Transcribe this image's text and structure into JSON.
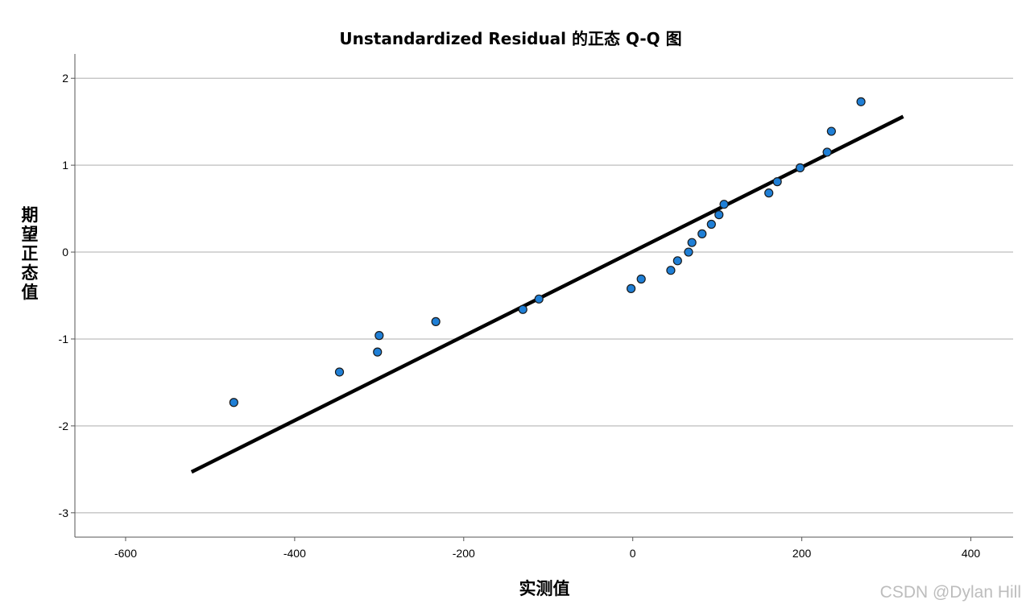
{
  "chart_data": {
    "type": "scatter",
    "title": "Unstandardized Residual 的正态 Q-Q 图",
    "xlabel": "实测值",
    "ylabel": "期望正态值",
    "xlim": [
      -660,
      450
    ],
    "ylim": [
      -3.28,
      2.28
    ],
    "xticks": [
      "-600",
      "-400",
      "-200",
      "0",
      "200",
      "400"
    ],
    "yticks": [
      "2",
      "1",
      "0",
      "-1",
      "-2",
      "-3"
    ],
    "xtick_values": [
      -600,
      -400,
      -200,
      0,
      200,
      400
    ],
    "ytick_values": [
      2,
      1,
      0,
      -1,
      -2,
      -3
    ],
    "grid": "horizontal",
    "point_color": "#1f7fd6",
    "line_color": "#000000",
    "points": [
      [
        -472,
        -1.73
      ],
      [
        -347,
        -1.38
      ],
      [
        -302,
        -1.15
      ],
      [
        -300,
        -0.96
      ],
      [
        -233,
        -0.8
      ],
      [
        -130,
        -0.66
      ],
      [
        -111,
        -0.54
      ],
      [
        -2,
        -0.42
      ],
      [
        10,
        -0.31
      ],
      [
        45,
        -0.21
      ],
      [
        53,
        -0.1
      ],
      [
        66,
        0.0
      ],
      [
        70,
        0.11
      ],
      [
        82,
        0.21
      ],
      [
        93,
        0.32
      ],
      [
        102,
        0.43
      ],
      [
        108,
        0.55
      ],
      [
        161,
        0.68
      ],
      [
        171,
        0.81
      ],
      [
        198,
        0.97
      ],
      [
        230,
        1.15
      ],
      [
        235,
        1.39
      ],
      [
        270,
        1.73
      ]
    ],
    "reference_line": [
      [
        -522,
        -2.53
      ],
      [
        320,
        1.56
      ]
    ]
  },
  "watermark": "CSDN @Dylan Hill"
}
